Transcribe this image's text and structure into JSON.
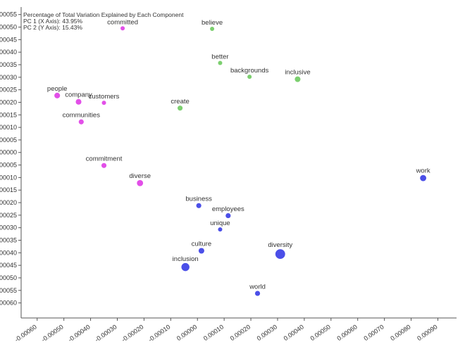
{
  "chart_data": {
    "type": "scatter",
    "title": "",
    "xlabel": "",
    "ylabel": "",
    "annotation": {
      "heading": "Percentage of Total Variation Explained by Each Component",
      "pc1": "PC 1 (X Axis): 43.95%",
      "pc2": "PC 2 (Y Axis): 15.43%"
    },
    "xlim": [
      -0.00066,
      0.00097
    ],
    "ylim": [
      -0.00066,
      0.00058
    ],
    "x_ticks": [
      {
        "value": -0.0006,
        "label": "-0.00060"
      },
      {
        "value": -0.0005,
        "label": "-0.00050"
      },
      {
        "value": -0.0004,
        "label": "-0.00040"
      },
      {
        "value": -0.0003,
        "label": "-0.00030"
      },
      {
        "value": -0.0002,
        "label": "-0.00020"
      },
      {
        "value": -0.0001,
        "label": "-0.00010"
      },
      {
        "value": 0.0,
        "label": "0.00000"
      },
      {
        "value": 0.0001,
        "label": "0.00010"
      },
      {
        "value": 0.0002,
        "label": "0.00020"
      },
      {
        "value": 0.0003,
        "label": "0.00030"
      },
      {
        "value": 0.0004,
        "label": "0.00040"
      },
      {
        "value": 0.0005,
        "label": "0.00050"
      },
      {
        "value": 0.0006,
        "label": "0.00060"
      },
      {
        "value": 0.0007,
        "label": "0.00070"
      },
      {
        "value": 0.0008,
        "label": "0.00080"
      },
      {
        "value": 0.0009,
        "label": "0.00090"
      }
    ],
    "y_ticks": [
      {
        "value": 0.00055,
        "label": "0.00055"
      },
      {
        "value": 0.0005,
        "label": "0.00050"
      },
      {
        "value": 0.00045,
        "label": "0.00045"
      },
      {
        "value": 0.0004,
        "label": "0.00040"
      },
      {
        "value": 0.00035,
        "label": "0.00035"
      },
      {
        "value": 0.0003,
        "label": "0.00030"
      },
      {
        "value": 0.00025,
        "label": "0.00025"
      },
      {
        "value": 0.0002,
        "label": "0.00020"
      },
      {
        "value": 0.00015,
        "label": "0.00015"
      },
      {
        "value": 0.0001,
        "label": "0.00010"
      },
      {
        "value": 5e-05,
        "label": "0.00005"
      },
      {
        "value": 0.0,
        "label": "0.00000"
      },
      {
        "value": -5e-05,
        "label": "-0.00005"
      },
      {
        "value": -0.0001,
        "label": "-0.00010"
      },
      {
        "value": -0.00015,
        "label": "-0.00015"
      },
      {
        "value": -0.0002,
        "label": "-0.00020"
      },
      {
        "value": -0.00025,
        "label": "-0.00025"
      },
      {
        "value": -0.0003,
        "label": "-0.00030"
      },
      {
        "value": -0.00035,
        "label": "-0.00035"
      },
      {
        "value": -0.0004,
        "label": "-0.00040"
      },
      {
        "value": -0.00045,
        "label": "-0.00045"
      },
      {
        "value": -0.0005,
        "label": "-0.00050"
      },
      {
        "value": -0.00055,
        "label": "-0.00055"
      },
      {
        "value": -0.0006,
        "label": "-0.00060"
      }
    ],
    "grid": false,
    "colors": {
      "magenta": "#e24fe8",
      "green": "#7ccf6f",
      "blue": "#4b4fe8"
    },
    "points": [
      {
        "label": "committed",
        "x": -0.00028,
        "y": 0.000495,
        "size": 1,
        "group": "magenta"
      },
      {
        "label": "people",
        "x": -0.000525,
        "y": 0.000227,
        "size": 3,
        "group": "magenta"
      },
      {
        "label": "company",
        "x": -0.000445,
        "y": 0.000202,
        "size": 3,
        "group": "magenta"
      },
      {
        "label": "customers",
        "x": -0.00035,
        "y": 0.000198,
        "size": 1,
        "group": "magenta"
      },
      {
        "label": "communities",
        "x": -0.000435,
        "y": 0.000122,
        "size": 2,
        "group": "magenta"
      },
      {
        "label": "commitment",
        "x": -0.00035,
        "y": -5.2e-05,
        "size": 2,
        "group": "magenta"
      },
      {
        "label": "diverse",
        "x": -0.000215,
        "y": -0.000122,
        "size": 4,
        "group": "magenta"
      },
      {
        "label": "believe",
        "x": 5.5e-05,
        "y": 0.000493,
        "size": 1,
        "group": "green"
      },
      {
        "label": "better",
        "x": 8.5e-05,
        "y": 0.000357,
        "size": 1,
        "group": "green"
      },
      {
        "label": "backgrounds",
        "x": 0.000195,
        "y": 0.000302,
        "size": 1,
        "group": "green"
      },
      {
        "label": "inclusive",
        "x": 0.000375,
        "y": 0.000292,
        "size": 3,
        "group": "green"
      },
      {
        "label": "create",
        "x": -6.5e-05,
        "y": 0.000177,
        "size": 2,
        "group": "green"
      },
      {
        "label": "work",
        "x": 0.000845,
        "y": -0.000102,
        "size": 4,
        "group": "blue"
      },
      {
        "label": "business",
        "x": 5e-06,
        "y": -0.000212,
        "size": 2,
        "group": "blue"
      },
      {
        "label": "employees",
        "x": 0.000115,
        "y": -0.000252,
        "size": 2,
        "group": "blue"
      },
      {
        "label": "unique",
        "x": 8.5e-05,
        "y": -0.000307,
        "size": 1,
        "group": "blue"
      },
      {
        "label": "culture",
        "x": 1.5e-05,
        "y": -0.000392,
        "size": 3,
        "group": "blue"
      },
      {
        "label": "diversity",
        "x": 0.00031,
        "y": -0.000405,
        "size": 10,
        "group": "blue"
      },
      {
        "label": "inclusion",
        "x": -4.5e-05,
        "y": -0.000457,
        "size": 6,
        "group": "blue"
      },
      {
        "label": "world",
        "x": 0.000225,
        "y": -0.000562,
        "size": 2,
        "group": "blue"
      }
    ]
  }
}
